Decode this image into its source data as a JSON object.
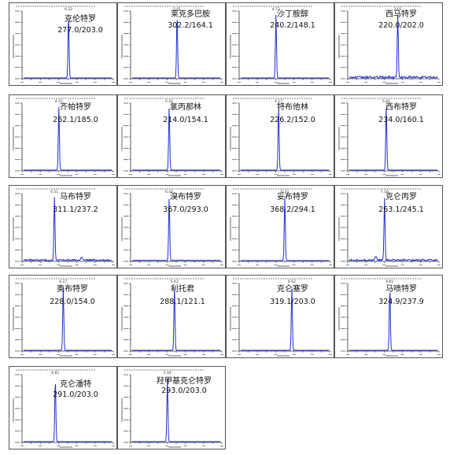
{
  "colors": {
    "trace": "#1f2fd0",
    "axis": "#333333",
    "frame": "#555555"
  },
  "chart_data": [
    {
      "type": "line",
      "compound": "克伦特罗",
      "transition": "277.0/203.0",
      "peak_label": "6.22",
      "peak": 0.51,
      "baseline_noise": 0.0,
      "extra_peaks": []
    },
    {
      "type": "line",
      "compound": "莱克多巴胺",
      "transition": "302.2/164.1",
      "peak_label": "5.81",
      "peak": 0.51,
      "baseline_noise": 0.0,
      "extra_peaks": []
    },
    {
      "type": "line",
      "compound": "沙丁胺醇",
      "transition": "240.2/148.1",
      "peak_label": "4.73",
      "peak": 0.4,
      "baseline_noise": 0.0,
      "extra_peaks": []
    },
    {
      "type": "line",
      "compound": "西马特罗",
      "transition": "220.0/202.0",
      "peak_label": "2.01",
      "peak": 0.55,
      "baseline_noise": 0.04,
      "extra_peaks": []
    },
    {
      "type": "line",
      "compound": "齐帕特罗",
      "transition": "262.1/185.0",
      "peak_label": "4.22",
      "peak": 0.4,
      "baseline_noise": 0.0,
      "extra_peaks": []
    },
    {
      "type": "line",
      "compound": "氯丙那林",
      "transition": "214.0/154.1",
      "peak_label": "5.22",
      "peak": 0.42,
      "baseline_noise": 0.0,
      "extra_peaks": []
    },
    {
      "type": "line",
      "compound": "特布他林",
      "transition": "226.2/152.0",
      "peak_label": "4.17",
      "peak": 0.43,
      "baseline_noise": 0.0,
      "extra_peaks": []
    },
    {
      "type": "line",
      "compound": "西布特罗",
      "transition": "234.0/160.1",
      "peak_label": "5.81",
      "peak": 0.42,
      "baseline_noise": 0.0,
      "extra_peaks": []
    },
    {
      "type": "line",
      "compound": "马布特罗",
      "transition": "311.1/237.2",
      "peak_label": "6.51",
      "peak": 0.35,
      "baseline_noise": 0.03,
      "extra_peaks": [
        {
          "x": 0.66,
          "h": 0.06
        }
      ]
    },
    {
      "type": "line",
      "compound": "溴布特罗",
      "transition": "367.0/293.0",
      "peak_label": "6.44",
      "peak": 0.42,
      "baseline_noise": 0.01,
      "extra_peaks": []
    },
    {
      "type": "line",
      "compound": "妥布特罗",
      "transition": "368.2/294.1",
      "peak_label": "6.33",
      "peak": 0.5,
      "baseline_noise": 0.0,
      "extra_peaks": []
    },
    {
      "type": "line",
      "compound": "克仑丙罗",
      "transition": "263.1/245.1",
      "peak_label": "7.16",
      "peak": 0.4,
      "baseline_noise": 0.03,
      "extra_peaks": [
        {
          "x": 0.3,
          "h": 0.07
        }
      ]
    },
    {
      "type": "line",
      "compound": "奥布特罗",
      "transition": "228.0/154.0",
      "peak_label": "6.27",
      "peak": 0.45,
      "baseline_noise": 0.0,
      "extra_peaks": []
    },
    {
      "type": "line",
      "compound": "利托君",
      "transition": "288.1/121.1",
      "peak_label": "5.43",
      "peak": 0.48,
      "baseline_noise": 0.0,
      "extra_peaks": []
    },
    {
      "type": "line",
      "compound": "克仑塞罗",
      "transition": "319.1/203.0",
      "peak_label": "6.62",
      "peak": 0.58,
      "baseline_noise": 0.0,
      "extra_peaks": []
    },
    {
      "type": "line",
      "compound": "马喷特罗",
      "transition": "324.9/237.9",
      "peak_label": "6.81",
      "peak": 0.46,
      "baseline_noise": 0.0,
      "extra_peaks": []
    },
    {
      "type": "line",
      "compound": "克仑潘特",
      "transition": "291.0/203.0",
      "peak_label": "6.81",
      "peak": 0.36,
      "baseline_noise": 0.0,
      "extra_peaks": []
    },
    {
      "type": "line",
      "compound": "羟甲基克仑特罗",
      "transition": "293.0/203.0",
      "peak_label": "5.93",
      "peak": 0.4,
      "baseline_noise": 0.0,
      "extra_peaks": []
    }
  ]
}
